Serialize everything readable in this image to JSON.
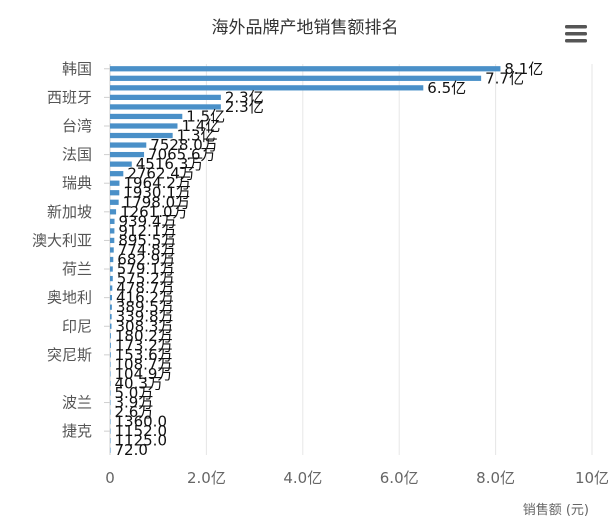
{
  "chart_data": {
    "type": "bar",
    "orientation": "horizontal",
    "title": "海外品牌产地销售额排名",
    "xlabel": "销售额 (元)",
    "ylabel": "",
    "xlim": [
      0,
      1000000000
    ],
    "x_ticks": [
      "0",
      "2.0亿",
      "4.0亿",
      "6.0亿",
      "8.0亿",
      "10亿"
    ],
    "grid": true,
    "legend": "none",
    "bar_color": "#4a90c8",
    "y_tick_labels": [
      "韩国",
      "西班牙",
      "台湾",
      "法国",
      "瑞典",
      "新加坡",
      "澳大利亚",
      "荷兰",
      "奥地利",
      "印尼",
      "突尼斯",
      "波兰",
      "捷克"
    ],
    "data_labels": [
      "8.1亿",
      "7.7亿",
      "6.5亿",
      "2.3亿",
      "2.3亿",
      "1.5亿",
      "1.4亿",
      "1.3亿",
      "7528.0万",
      "7065.6万",
      "4516.3万",
      "2762.4万",
      "1964.2万",
      "1930.1万",
      "1798.0万",
      "1261.0万",
      "939.4万",
      "912.1万",
      "895.5万",
      "774.8万",
      "682.9万",
      "579.1万",
      "575.2万",
      "478.7万",
      "416.2万",
      "389.5万",
      "339.8万",
      "308.3万",
      "180.2万",
      "173.2万",
      "153.6万",
      "108.7万",
      "104.9万",
      "40.3万",
      "5.0万",
      "3.9万",
      "2.6万",
      "1360.0",
      "1152.0",
      "1125.0",
      "72.0"
    ],
    "values": [
      810000000,
      770000000,
      650000000,
      230000000,
      230000000,
      150000000,
      140000000,
      130000000,
      75280000,
      70656000,
      45163000,
      27624000,
      19642000,
      19301000,
      17980000,
      12610000,
      9394000,
      9121000,
      8955000,
      7748000,
      6829000,
      5791000,
      5752000,
      4787000,
      4162000,
      3895000,
      3398000,
      3083000,
      1802000,
      1732000,
      1536000,
      1087000,
      1049000,
      403000,
      50000,
      39000,
      26000,
      1360,
      1152,
      1125,
      72
    ],
    "category_label_rows": [
      0,
      3,
      6,
      9,
      12,
      15,
      18,
      21,
      24,
      27,
      30,
      35,
      38
    ]
  },
  "toolbar": {
    "menu_icon": "hamburger-menu-icon"
  }
}
